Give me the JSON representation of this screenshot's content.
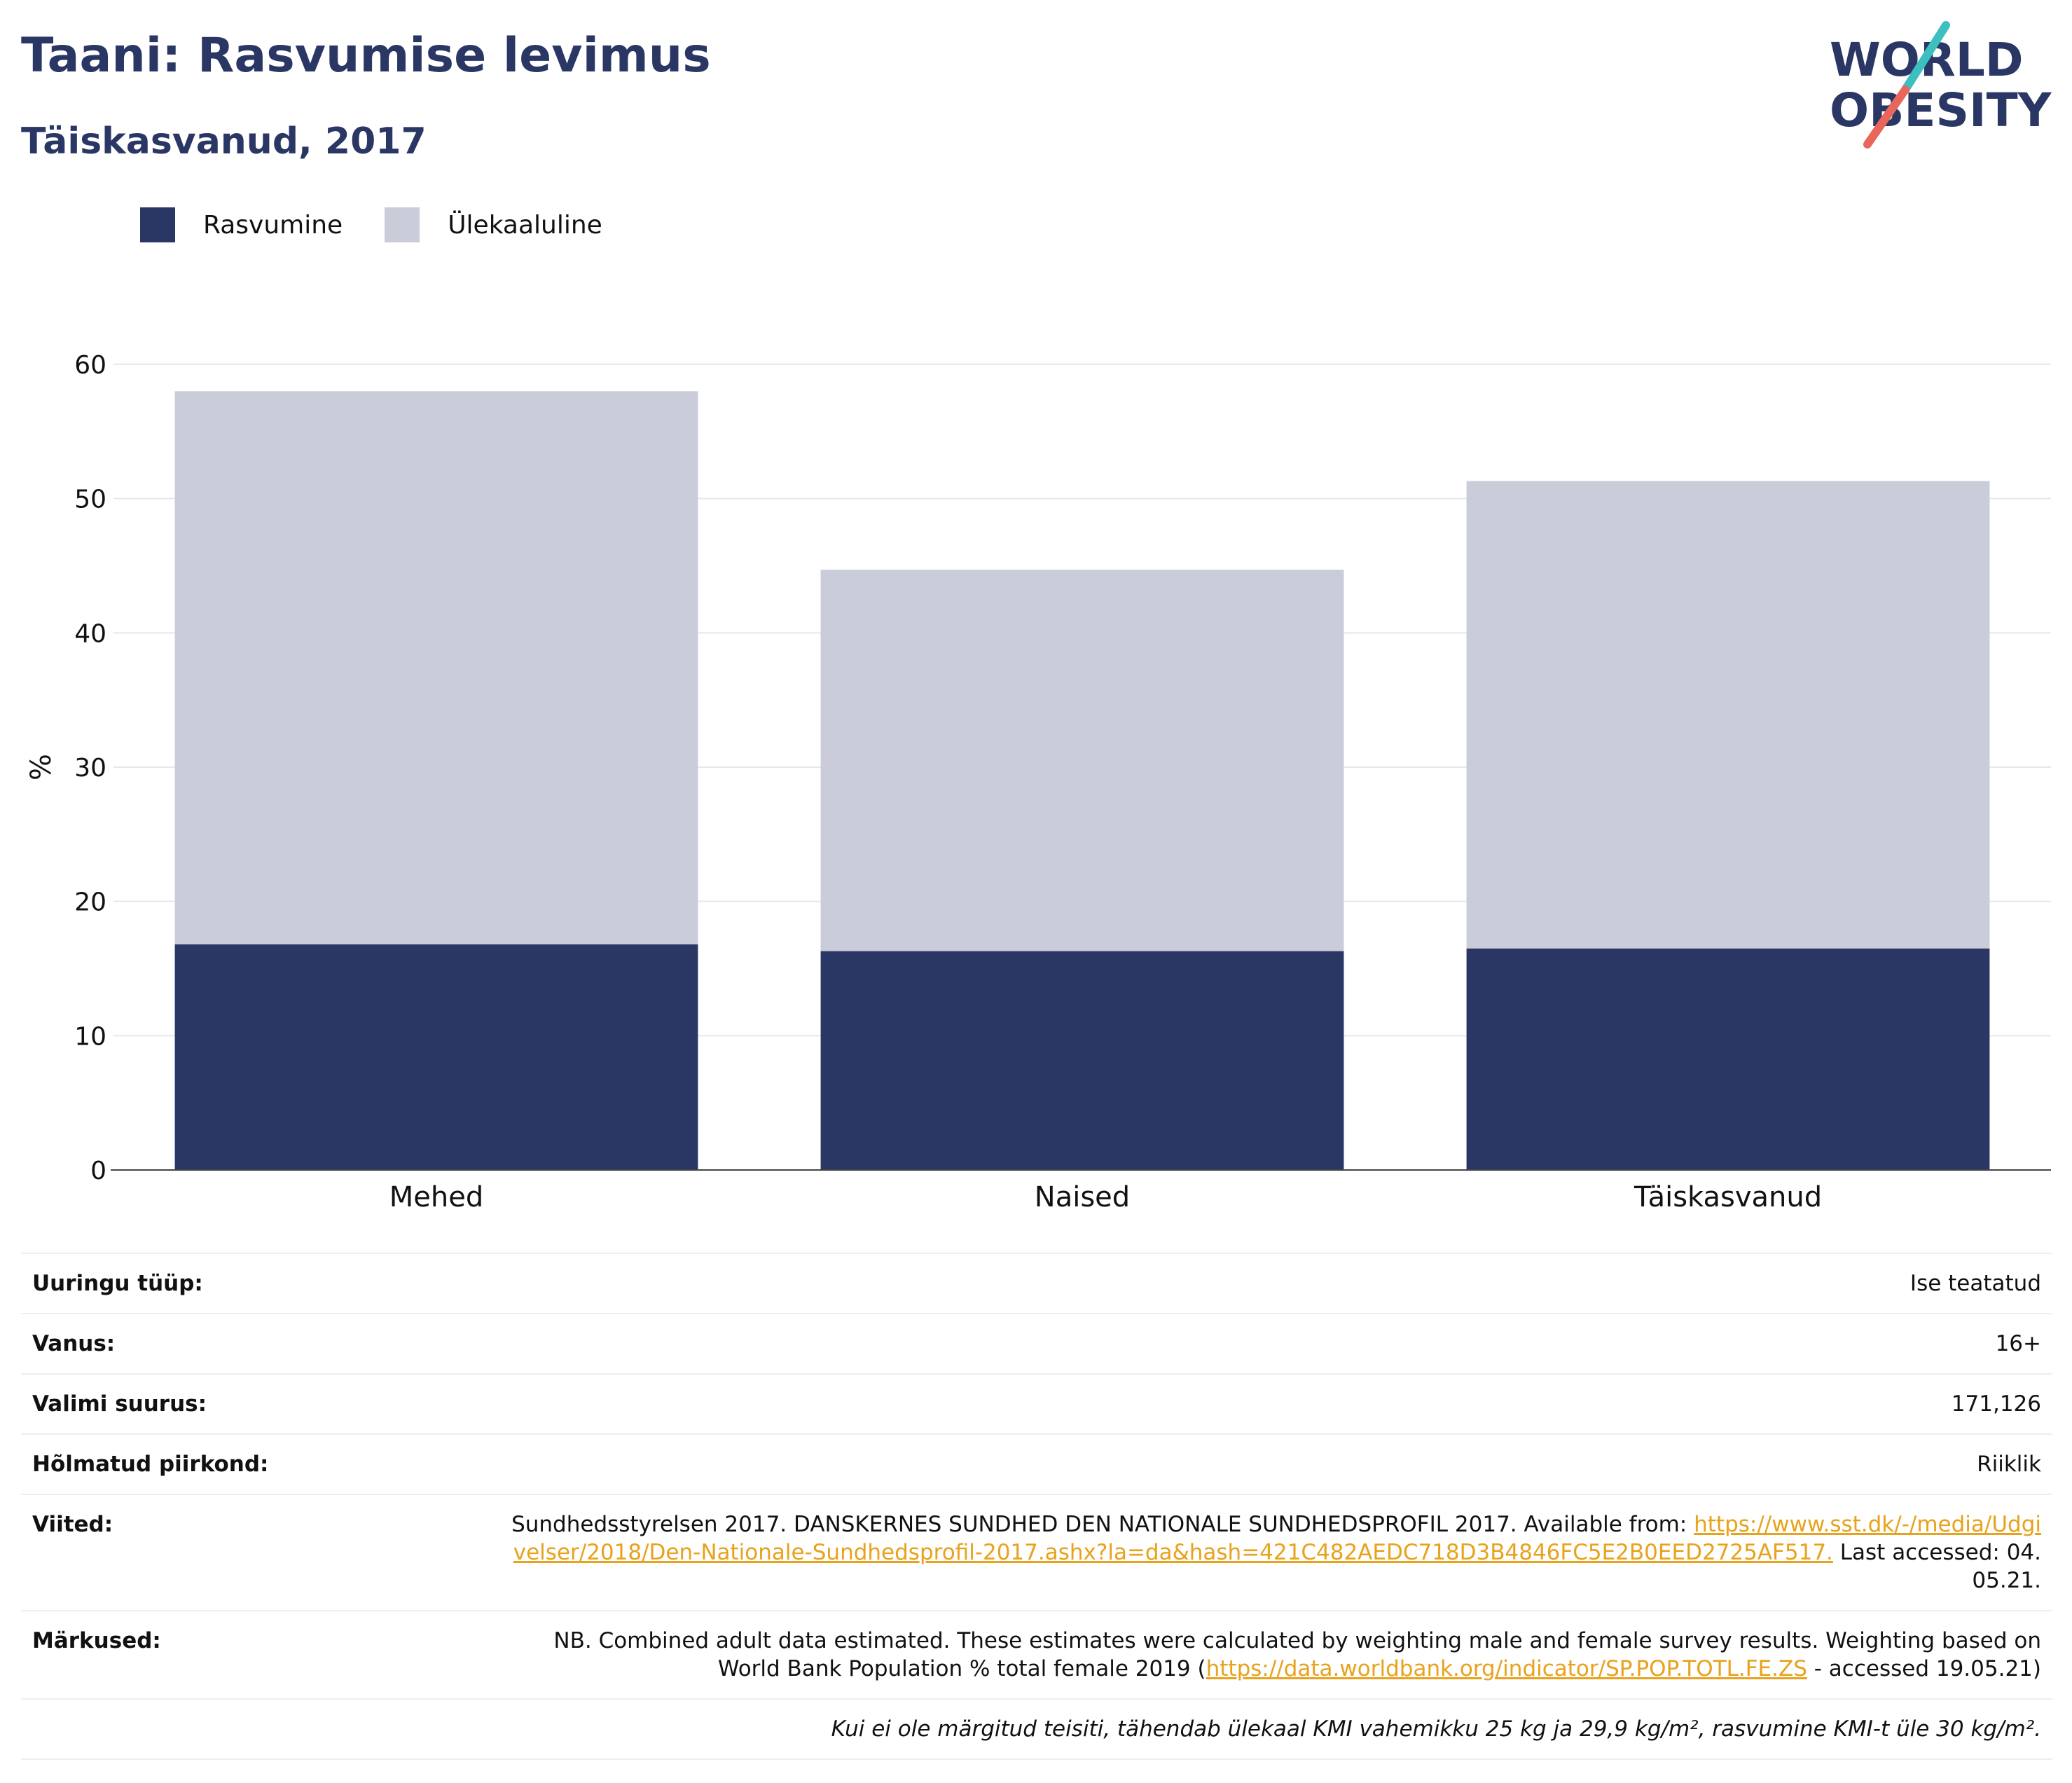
{
  "header": {
    "title": "Taani: Rasvumise levimus",
    "subtitle": "Täiskasvanud, 2017",
    "logo_text": [
      "WORLD",
      "OBESITY"
    ]
  },
  "colors": {
    "obesity": "#2a3764",
    "overweight": "#cacdd9",
    "accent_teal": "#3dbfc0",
    "accent_coral": "#e8675a",
    "link": "#e8a21b"
  },
  "chart_data": {
    "type": "bar",
    "stacked": true,
    "categories": [
      "Mehed",
      "Naised",
      "Täiskasvanud"
    ],
    "series": [
      {
        "name": "Rasvumine",
        "values": [
          16.8,
          16.3,
          16.5
        ]
      },
      {
        "name": "Ülekaaluline",
        "values": [
          41.2,
          28.4,
          34.8
        ]
      }
    ],
    "ylabel": "%",
    "ylim": [
      0,
      60
    ],
    "yticks": [
      0,
      10,
      20,
      30,
      40,
      50,
      60
    ],
    "grid": true,
    "legend_position": "top-left"
  },
  "info": {
    "survey_type": {
      "label": "Uuringu tüüp:",
      "value": "Ise teatatud"
    },
    "age": {
      "label": "Vanus:",
      "value": "16+"
    },
    "sample_size": {
      "label": "Valimi suurus:",
      "value": "171,126"
    },
    "area": {
      "label": "Hõlmatud piirkond:",
      "value": "Riiklik"
    },
    "references": {
      "label": "Viited:",
      "text_before": "Sundhedsstyrelsen 2017. DANSKERNES SUNDHED DEN NATIONALE SUNDHEDSPROFIL 2017. Available from: ",
      "link": "https://www.sst.dk/-/media/Udgivelser/2018/Den-Nationale-Sundhedsprofil-2017.ashx?la=da&hash=421C482AEDC718D3B4846FC5E2B0EED2725AF517.",
      "text_after": " Last accessed: 04.05.21."
    },
    "notes": {
      "label": "Märkused:",
      "text_before": "NB. Combined adult data estimated. These estimates were calculated by weighting male and female survey results. Weighting based on World Bank Population % total female 2019 (",
      "link": "https://data.worldbank.org/indicator/SP.POP.TOTL.FE.ZS",
      "text_after": " - accessed 19.05.21)"
    },
    "footnote": "Kui ei ole märgitud teisiti, tähendab ülekaal KMI vahemikku 25 kg ja 29,9 kg/m², rasvumine KMI-t üle 30 kg/m²."
  }
}
